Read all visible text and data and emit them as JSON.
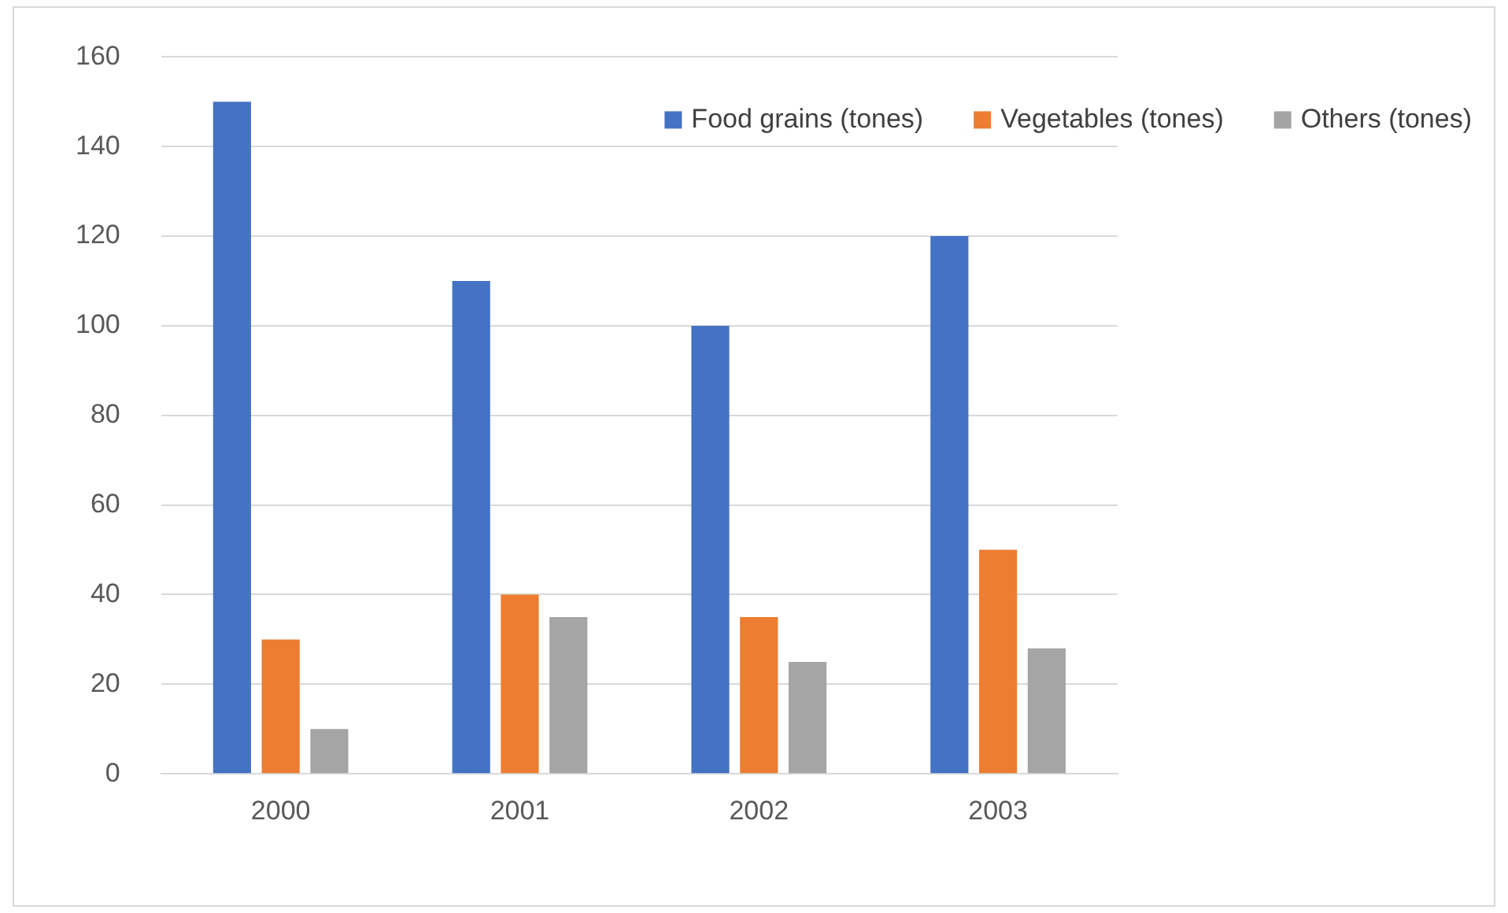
{
  "chart_data": {
    "type": "bar",
    "categories": [
      "2000",
      "2001",
      "2002",
      "2003"
    ],
    "series": [
      {
        "name": "Food grains (tones)",
        "color": "#4472c4",
        "values": [
          150,
          110,
          100,
          120
        ]
      },
      {
        "name": "Vegetables (tones)",
        "color": "#ed7d31",
        "values": [
          30,
          40,
          35,
          50
        ]
      },
      {
        "name": "Others (tones)",
        "color": "#a5a5a5",
        "values": [
          10,
          35,
          25,
          28
        ]
      }
    ],
    "ylim": [
      0,
      160
    ],
    "yticks": [
      0,
      20,
      40,
      60,
      80,
      100,
      120,
      140,
      160
    ],
    "grid": "y",
    "legend": "top right"
  }
}
